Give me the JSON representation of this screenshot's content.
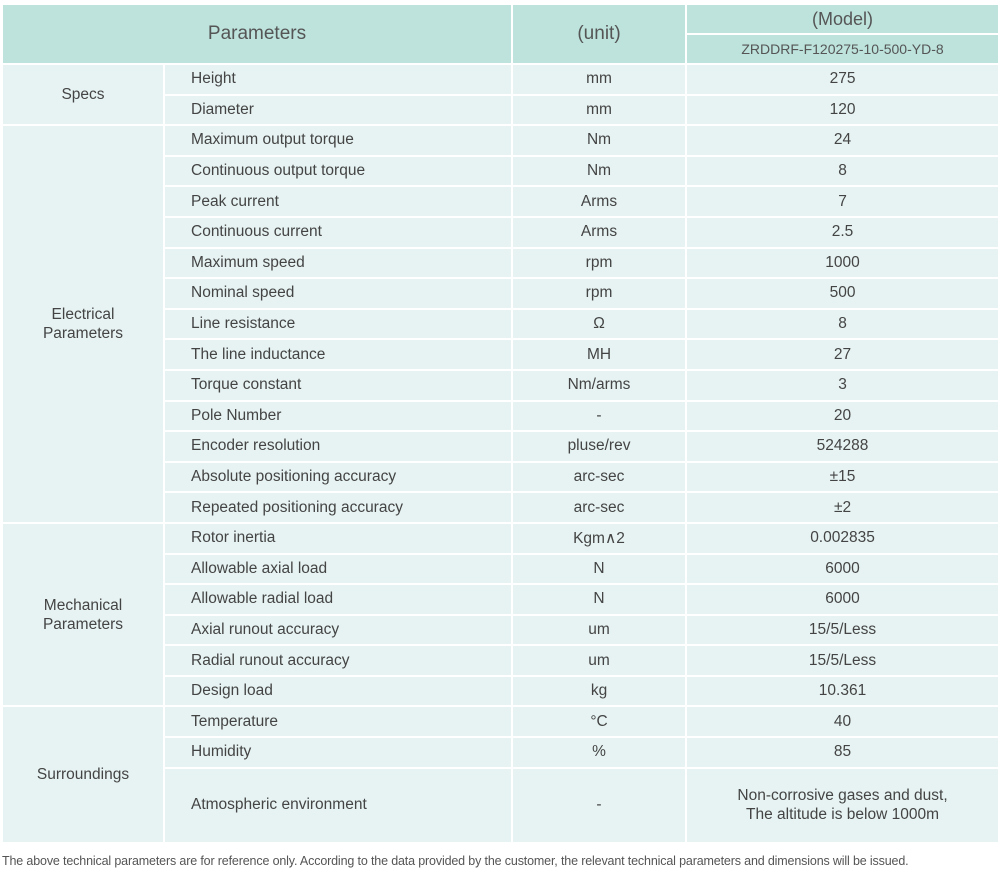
{
  "header": {
    "parameters": "Parameters",
    "unit": "(unit)",
    "model": "(Model)",
    "model_code": "ZRDDRF-F120275-10-500-YD-8"
  },
  "groups": [
    {
      "label": "Specs",
      "rows": [
        {
          "name": "Height",
          "unit": "mm",
          "value": "275"
        },
        {
          "name": "Diameter",
          "unit": "mm",
          "value": "120"
        }
      ]
    },
    {
      "label": "Electrical Parameters",
      "rows": [
        {
          "name": "Maximum output torque",
          "unit": "Nm",
          "value": "24"
        },
        {
          "name": "Continuous output torque",
          "unit": "Nm",
          "value": "8"
        },
        {
          "name": "Peak current",
          "unit": "Arms",
          "value": "7"
        },
        {
          "name": "Continuous current",
          "unit": "Arms",
          "value": "2.5"
        },
        {
          "name": "Maximum speed",
          "unit": "rpm",
          "value": "1000"
        },
        {
          "name": "Nominal speed",
          "unit": "rpm",
          "value": "500"
        },
        {
          "name": "Line resistance",
          "unit": "Ω",
          "value": "8"
        },
        {
          "name": "The line inductance",
          "unit": "MH",
          "value": "27"
        },
        {
          "name": "Torque constant",
          "unit": "Nm/arms",
          "value": "3"
        },
        {
          "name": "Pole Number",
          "unit": "-",
          "value": "20"
        },
        {
          "name": "Encoder resolution",
          "unit": "pluse/rev",
          "value": "524288"
        },
        {
          "name": "Absolute positioning accuracy",
          "unit": "arc-sec",
          "value": "±15"
        },
        {
          "name": "Repeated positioning accuracy",
          "unit": "arc-sec",
          "value": "±2"
        }
      ]
    },
    {
      "label": "Mechanical Parameters",
      "rows": [
        {
          "name": "Rotor inertia",
          "unit": "Kgm∧2",
          "value": "0.002835"
        },
        {
          "name": "Allowable axial load",
          "unit": "N",
          "value": "6000"
        },
        {
          "name": "Allowable radial load",
          "unit": "N",
          "value": "6000"
        },
        {
          "name": "Axial runout accuracy",
          "unit": "um",
          "value": "15/5/Less"
        },
        {
          "name": "Radial runout accuracy",
          "unit": "um",
          "value": "15/5/Less"
        },
        {
          "name": "Design load",
          "unit": "kg",
          "value": "10.361"
        }
      ]
    },
    {
      "label": "Surroundings",
      "rows": [
        {
          "name": "Temperature",
          "unit": "°C",
          "value": "40"
        },
        {
          "name": "Humidity",
          "unit": "%",
          "value": "85"
        },
        {
          "name": "Atmospheric environment",
          "unit": "-",
          "value": "Non-corrosive gases and dust,\nThe altitude is below 1000m",
          "tall": true
        }
      ]
    }
  ],
  "footnote": "The above technical parameters are for reference only. According to the data provided by the customer, the relevant technical parameters and dimensions will be issued."
}
